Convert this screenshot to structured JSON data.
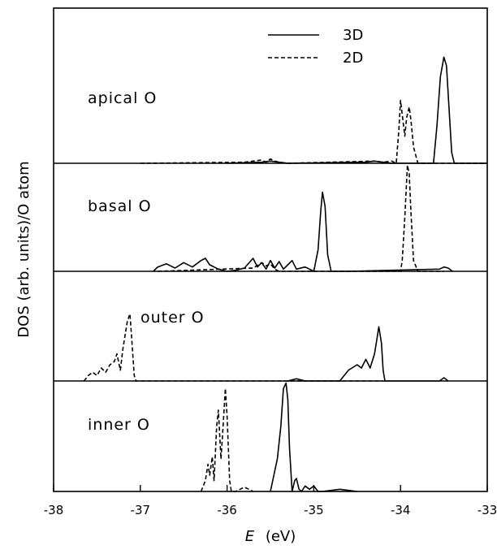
{
  "chart_data": {
    "type": "line",
    "xlabel_symbol": "E",
    "xlabel_unit": "(eV)",
    "ylabel": "DOS (arb. units)/O atom",
    "xlim": [
      -38,
      -33
    ],
    "x_ticks": [
      "-38",
      "-37",
      "-36",
      "-35",
      "-34",
      "-33"
    ],
    "grid": false,
    "legend": {
      "placement": "top-right of top panel",
      "entries": [
        {
          "label": "3D",
          "style": "solid"
        },
        {
          "label": "2D",
          "style": "dashed"
        }
      ]
    },
    "panels": [
      {
        "label": "apical O",
        "series": [
          {
            "name": "3D",
            "x": [
              -36.0,
              -35.6,
              -35.5,
              -35.4,
              -35.3,
              -34.4,
              -34.3,
              -34.2,
              -34.1,
              -34.0,
              -33.9,
              -33.8,
              -33.62,
              -33.58,
              -33.54,
              -33.5,
              -33.47,
              -33.44,
              -33.41,
              -33.38,
              -33.0
            ],
            "y": [
              0,
              0.01,
              0.02,
              0.01,
              0,
              0.01,
              0.02,
              0.01,
              0,
              0,
              0,
              0,
              0,
              0.35,
              0.8,
              0.98,
              0.9,
              0.5,
              0.1,
              0,
              0
            ]
          },
          {
            "name": "2D",
            "x": [
              -37.0,
              -35.8,
              -35.7,
              -35.6,
              -35.55,
              -35.5,
              -35.45,
              -35.4,
              -35.3,
              -34.3,
              -34.2,
              -34.1,
              -34.05,
              -34.02,
              -34.0,
              -33.98,
              -33.95,
              -33.93,
              -33.9,
              -33.88,
              -33.85,
              -33.8,
              -33.5,
              -33.0
            ],
            "y": [
              0,
              0.01,
              0.02,
              0.03,
              0.01,
              0.04,
              0.02,
              0.01,
              0,
              0.02,
              0.01,
              0.02,
              0,
              0.3,
              0.58,
              0.45,
              0.25,
              0.42,
              0.52,
              0.4,
              0.15,
              0,
              0,
              0
            ]
          }
        ]
      },
      {
        "label": "basal O",
        "series": [
          {
            "name": "3D",
            "x": [
              -36.85,
              -36.8,
              -36.7,
              -36.6,
              -36.5,
              -36.4,
              -36.3,
              -36.25,
              -36.2,
              -36.1,
              -36.0,
              -35.9,
              -35.8,
              -35.7,
              -35.65,
              -35.6,
              -35.55,
              -35.5,
              -35.45,
              -35.4,
              -35.35,
              -35.3,
              -35.25,
              -35.2,
              -35.1,
              -35.0,
              -34.95,
              -34.92,
              -34.9,
              -34.87,
              -34.84,
              -34.8,
              -34.6,
              -33.55,
              -33.5,
              -33.45,
              -33.4
            ],
            "y": [
              0,
              0.04,
              0.07,
              0.03,
              0.08,
              0.04,
              0.1,
              0.12,
              0.06,
              0.02,
              0,
              0.01,
              0.03,
              0.12,
              0.04,
              0.08,
              0.02,
              0.1,
              0.03,
              0.09,
              0.02,
              0.06,
              0.1,
              0.02,
              0.04,
              0,
              0.2,
              0.55,
              0.73,
              0.6,
              0.15,
              0,
              0,
              0.02,
              0.04,
              0.03,
              0
            ],
            "xmin": -36.85
          },
          {
            "name": "2D",
            "x": [
              -36.8,
              -35.7,
              -35.6,
              -35.55,
              -35.5,
              -35.45,
              -35.4,
              -34.0,
              -33.98,
              -33.95,
              -33.92,
              -33.9,
              -33.88,
              -33.85,
              -33.8,
              -33.5
            ],
            "y": [
              0,
              0.03,
              0.08,
              0.05,
              0.07,
              0.02,
              0,
              0,
              0.1,
              0.5,
              0.98,
              0.9,
              0.55,
              0.1,
              0,
              0
            ]
          }
        ]
      },
      {
        "label": "outer O",
        "series": [
          {
            "name": "3D",
            "x": [
              -35.3,
              -35.2,
              -35.1,
              -34.7,
              -34.6,
              -34.5,
              -34.45,
              -34.4,
              -34.35,
              -34.3,
              -34.27,
              -34.25,
              -34.22,
              -34.2,
              -34.18,
              -33.55,
              -33.5,
              -33.45
            ],
            "y": [
              0,
              0.02,
              0,
              0,
              0.1,
              0.15,
              0.12,
              0.2,
              0.12,
              0.25,
              0.4,
              0.5,
              0.35,
              0.1,
              0,
              0,
              0.03,
              0
            ],
            "xmin": -35.3
          },
          {
            "name": "2D",
            "x": [
              -37.65,
              -37.6,
              -37.55,
              -37.5,
              -37.45,
              -37.4,
              -37.35,
              -37.3,
              -37.27,
              -37.23,
              -37.2,
              -37.15,
              -37.12,
              -37.1,
              -37.07,
              -37.05,
              -36.9,
              -34.7,
              -34.2
            ],
            "y": [
              0,
              0.05,
              0.08,
              0.05,
              0.12,
              0.08,
              0.15,
              0.18,
              0.25,
              0.1,
              0.3,
              0.55,
              0.62,
              0.4,
              0.05,
              0,
              0,
              0,
              0
            ],
            "xmin": -37.65,
            "xmax": -34.2
          }
        ]
      },
      {
        "label": "inner O",
        "series": [
          {
            "name": "3D",
            "x": [
              -35.5,
              -35.42,
              -35.38,
              -35.35,
              -35.32,
              -35.3,
              -35.28,
              -35.25,
              -35.22,
              -35.2,
              -35.17,
              -35.14,
              -35.1,
              -35.05,
              -35.0,
              -34.95,
              -34.9,
              -34.7,
              -34.6,
              -34.5
            ],
            "y": [
              0,
              0.3,
              0.6,
              0.95,
              1.0,
              0.85,
              0.4,
              0,
              0.1,
              0.12,
              0.02,
              0,
              0.05,
              0.02,
              0.05,
              0,
              0,
              0.02,
              0.01,
              0
            ],
            "xmin": -35.5,
            "xmax": -34.5
          },
          {
            "name": "2D",
            "x": [
              -36.3,
              -36.25,
              -36.22,
              -36.2,
              -36.17,
              -36.15,
              -36.12,
              -36.1,
              -36.07,
              -36.05,
              -36.02,
              -36.0,
              -35.97,
              -35.95,
              -35.9,
              -35.8,
              -35.75,
              -35.7
            ],
            "y": [
              0,
              0.1,
              0.25,
              0.15,
              0.32,
              0.1,
              0.6,
              0.75,
              0.3,
              0.55,
              0.95,
              0.7,
              0.1,
              0,
              0,
              0.04,
              0.02,
              0
            ],
            "xmin": -36.3,
            "xmax": -35.6
          }
        ]
      }
    ]
  }
}
